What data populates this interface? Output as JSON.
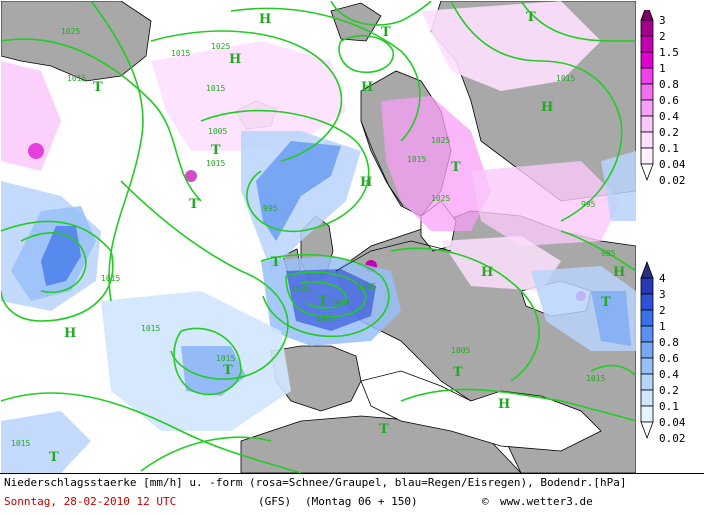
{
  "title_line": "Niederschlagsstaerke [mm/h] u. -form (rosa=Schnee/Graupel, blau=Regen/Eisregen), Bodendr.[hPa]",
  "date_line": "Sonntag, 28-02-2010  12 UTC",
  "model": "(GFS)",
  "valid": "(Montag 06 + 150)",
  "credit": "www.wetter3.de",
  "copyright_symbol": "©",
  "snow_scale": {
    "labels": [
      "3",
      "2",
      "1.5",
      "1",
      "0.8",
      "0.6",
      "0.4",
      "0.2",
      "0.1",
      "0.04",
      "0.02"
    ],
    "colors": [
      "#7a0066",
      "#a0008a",
      "#c400b0",
      "#e000d0",
      "#f040e8",
      "#f070f0",
      "#f8a0f8",
      "#fac8fa",
      "#fde0fd",
      "#fff0ff"
    ]
  },
  "rain_scale": {
    "labels": [
      "4",
      "3",
      "2",
      "1",
      "0.8",
      "0.6",
      "0.4",
      "0.2",
      "0.1",
      "0.04",
      "0.02"
    ],
    "colors": [
      "#2a2f80",
      "#2838b8",
      "#3050d8",
      "#3a70e8",
      "#5a90f0",
      "#78a8f4",
      "#98c0f8",
      "#b8d4fb",
      "#d0e6fd",
      "#e6f4ff"
    ]
  },
  "map": {
    "colors": {
      "land": "#a8a8a8",
      "sea": "#ffffff",
      "isobar": "#22cc22",
      "coast": "#000000",
      "label": "#22aa22"
    },
    "isobar_labels": [
      "1025",
      "1015",
      "1015",
      "1025",
      "1005",
      "1015",
      "995",
      "1005",
      "1005",
      "1015",
      "1005",
      "1025",
      "1015",
      "1015",
      "1015",
      "1005",
      "1015",
      "1015",
      "995",
      "985",
      "1005",
      "1025",
      "1015",
      "1015"
    ],
    "pressure_centres": [
      "H",
      "T",
      "H",
      "T",
      "H",
      "T",
      "H",
      "T",
      "H",
      "T",
      "T",
      "H",
      "T",
      "H",
      "T",
      "T",
      "H",
      "T",
      "T",
      "H",
      "T",
      "T"
    ]
  }
}
